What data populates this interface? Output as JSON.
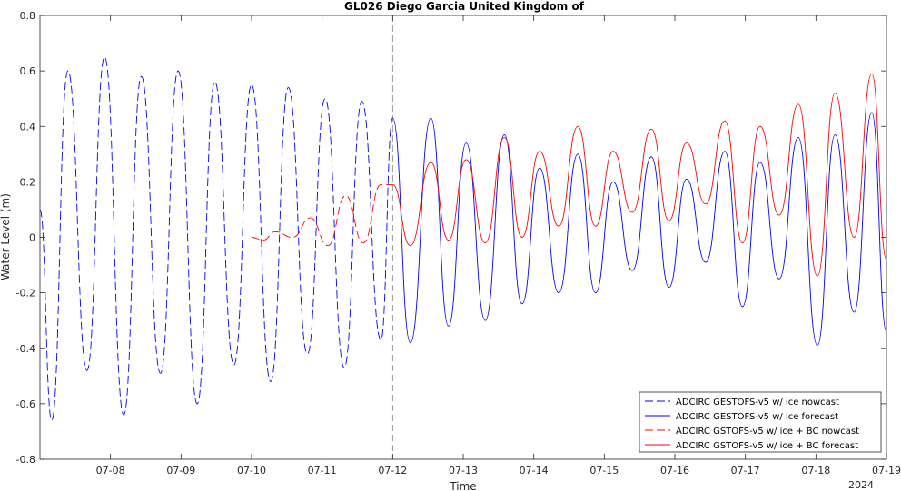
{
  "chart_data": {
    "type": "line",
    "title": "GL026 Diego Garcia United Kingdom of",
    "xlabel": "Time",
    "ylabel": "Water Level (m)",
    "year_label": "2024",
    "xlim": [
      "07-07 00:00",
      "07-19 00:00"
    ],
    "ylim": [
      -0.8,
      0.8
    ],
    "y_ticks": [
      "-0.8",
      "-0.6",
      "-0.4",
      "-0.2",
      "0",
      "0.2",
      "0.4",
      "0.6",
      "0.8"
    ],
    "x_ticks": [
      "07-08",
      "07-09",
      "07-10",
      "07-11",
      "07-12",
      "07-13",
      "07-14",
      "07-15",
      "07-16",
      "07-17",
      "07-18",
      "07-19"
    ],
    "grid": false,
    "vline_at": "07-12 00:00",
    "legend_position": "bottom-right",
    "colors": {
      "blue": "#0000ff",
      "red": "#ff0000",
      "vline": "#808080",
      "axis": "#262626"
    },
    "series": [
      {
        "name": "ADCIRC GESTOFS-v5 w/ ice nowcast",
        "color": "#0000ff",
        "style": "dashed",
        "points": [
          [
            "07-07 00:00",
            0.1
          ],
          [
            "07-07 04:00",
            -0.66
          ],
          [
            "07-07 09:30",
            0.6
          ],
          [
            "07-07 16:00",
            -0.48
          ],
          [
            "07-07 22:00",
            0.65
          ],
          [
            "07-08 04:30",
            -0.64
          ],
          [
            "07-08 10:30",
            0.58
          ],
          [
            "07-08 17:00",
            -0.49
          ],
          [
            "07-08 23:00",
            0.6
          ],
          [
            "07-09 05:30",
            -0.6
          ],
          [
            "07-09 11:30",
            0.56
          ],
          [
            "07-09 18:00",
            -0.46
          ],
          [
            "07-10 00:00",
            0.55
          ],
          [
            "07-10 06:30",
            -0.52
          ],
          [
            "07-10 12:30",
            0.54
          ],
          [
            "07-10 19:00",
            -0.42
          ],
          [
            "07-11 01:00",
            0.5
          ],
          [
            "07-11 07:30",
            -0.47
          ],
          [
            "07-11 13:30",
            0.49
          ],
          [
            "07-11 20:00",
            -0.37
          ],
          [
            "07-12 00:00",
            0.43
          ]
        ]
      },
      {
        "name": "ADCIRC GESTOFS-v5 w/ ice forecast",
        "color": "#0000ff",
        "style": "solid",
        "points": [
          [
            "07-12 00:00",
            0.43
          ],
          [
            "07-12 06:00",
            -0.38
          ],
          [
            "07-12 13:00",
            0.43
          ],
          [
            "07-12 19:00",
            -0.32
          ],
          [
            "07-13 01:00",
            0.34
          ],
          [
            "07-13 07:30",
            -0.3
          ],
          [
            "07-13 14:00",
            0.37
          ],
          [
            "07-13 20:00",
            -0.24
          ],
          [
            "07-14 02:00",
            0.25
          ],
          [
            "07-14 08:30",
            -0.2
          ],
          [
            "07-14 15:00",
            0.3
          ],
          [
            "07-14 21:00",
            -0.2
          ],
          [
            "07-15 03:00",
            0.2
          ],
          [
            "07-15 09:30",
            -0.12
          ],
          [
            "07-15 16:00",
            0.29
          ],
          [
            "07-15 22:00",
            -0.18
          ],
          [
            "07-16 04:00",
            0.21
          ],
          [
            "07-16 10:30",
            -0.09
          ],
          [
            "07-16 17:00",
            0.31
          ],
          [
            "07-16 23:00",
            -0.25
          ],
          [
            "07-17 05:00",
            0.27
          ],
          [
            "07-17 11:30",
            -0.15
          ],
          [
            "07-17 18:00",
            0.36
          ],
          [
            "07-18 00:30",
            -0.39
          ],
          [
            "07-18 06:30",
            0.37
          ],
          [
            "07-18 13:00",
            -0.27
          ],
          [
            "07-18 19:00",
            0.45
          ],
          [
            "07-19 00:00",
            -0.34
          ]
        ]
      },
      {
        "name": "ADCIRC GSTOFS-v5 w/ ice + BC nowcast",
        "color": "#ff0000",
        "style": "dashed",
        "points": [
          [
            "07-10 00:00",
            0.0
          ],
          [
            "07-10 04:00",
            -0.01
          ],
          [
            "07-10 08:00",
            0.02
          ],
          [
            "07-10 14:00",
            0.0
          ],
          [
            "07-10 20:00",
            0.07
          ],
          [
            "07-11 02:00",
            -0.03
          ],
          [
            "07-11 08:00",
            0.15
          ],
          [
            "07-11 14:00",
            -0.02
          ],
          [
            "07-11 20:00",
            0.19
          ],
          [
            "07-12 00:00",
            0.19
          ]
        ]
      },
      {
        "name": "ADCIRC GSTOFS-v5 w/ ice + BC forecast",
        "color": "#ff0000",
        "style": "solid",
        "points": [
          [
            "07-12 00:00",
            0.19
          ],
          [
            "07-12 06:00",
            -0.03
          ],
          [
            "07-12 13:00",
            0.27
          ],
          [
            "07-12 19:00",
            -0.01
          ],
          [
            "07-13 01:00",
            0.28
          ],
          [
            "07-13 07:30",
            -0.02
          ],
          [
            "07-13 14:00",
            0.36
          ],
          [
            "07-13 20:00",
            0.0
          ],
          [
            "07-14 02:00",
            0.31
          ],
          [
            "07-14 08:30",
            0.04
          ],
          [
            "07-14 15:00",
            0.4
          ],
          [
            "07-14 21:00",
            0.04
          ],
          [
            "07-15 03:00",
            0.31
          ],
          [
            "07-15 09:30",
            0.09
          ],
          [
            "07-15 16:00",
            0.39
          ],
          [
            "07-15 22:00",
            0.06
          ],
          [
            "07-16 04:00",
            0.34
          ],
          [
            "07-16 10:30",
            0.12
          ],
          [
            "07-16 17:00",
            0.42
          ],
          [
            "07-16 23:00",
            -0.02
          ],
          [
            "07-17 05:00",
            0.4
          ],
          [
            "07-17 11:30",
            0.08
          ],
          [
            "07-17 18:00",
            0.48
          ],
          [
            "07-18 00:30",
            -0.14
          ],
          [
            "07-18 06:30",
            0.52
          ],
          [
            "07-18 13:00",
            0.0
          ],
          [
            "07-18 19:00",
            0.59
          ],
          [
            "07-19 00:00",
            -0.08
          ]
        ]
      }
    ]
  }
}
